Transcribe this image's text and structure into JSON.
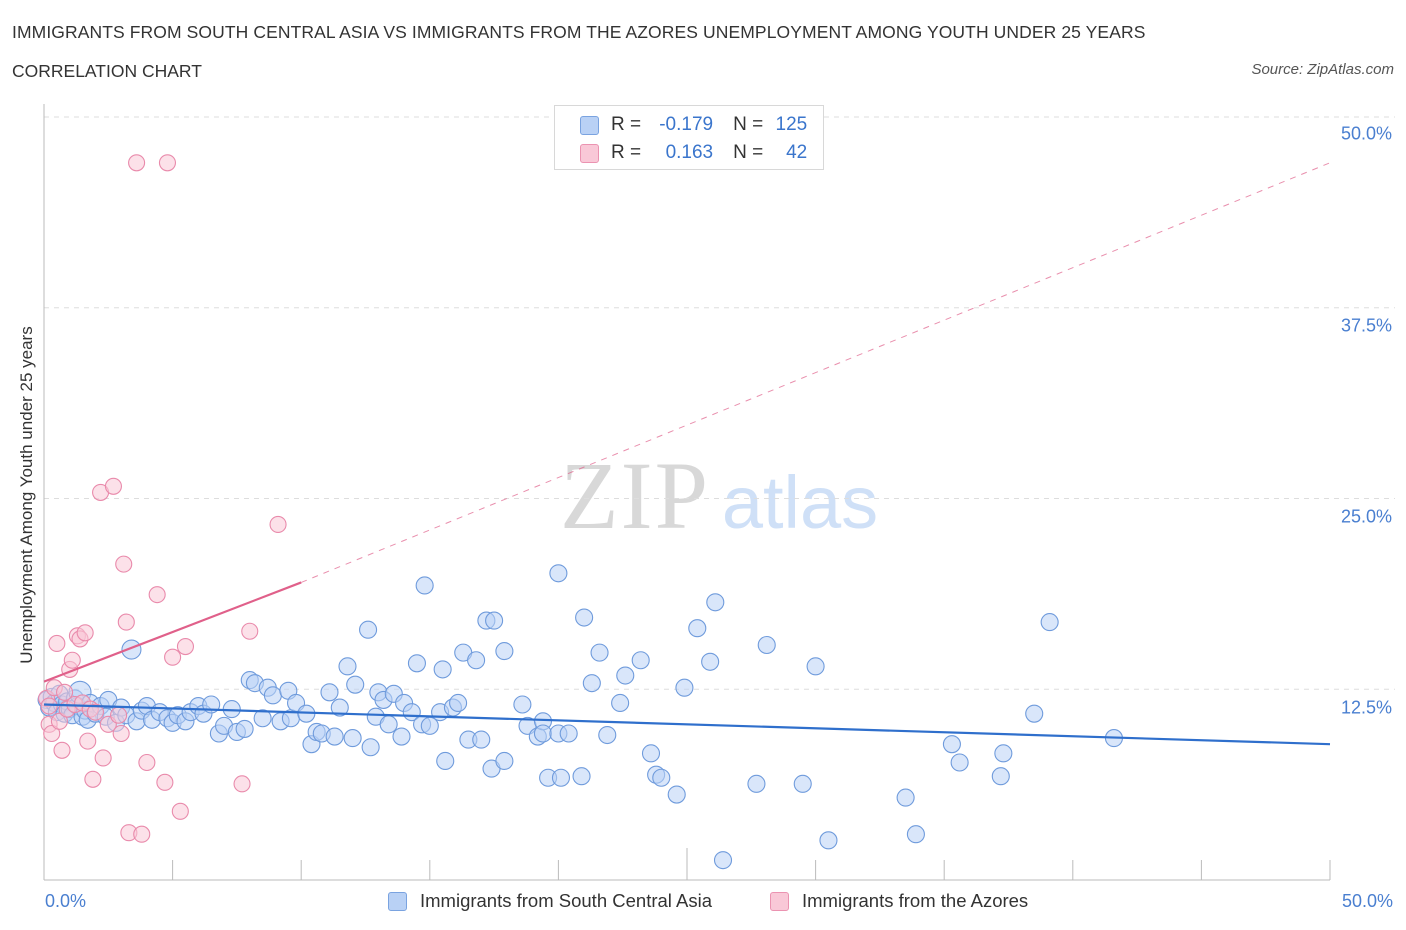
{
  "title": "IMMIGRANTS FROM SOUTH CENTRAL ASIA VS IMMIGRANTS FROM THE AZORES UNEMPLOYMENT AMONG YOUTH UNDER 25 YEARS",
  "subtitle": "CORRELATION CHART",
  "source": "Source: ZipAtlas.com",
  "watermark": {
    "zip": "ZIP",
    "atlas": "atlas"
  },
  "legend": {
    "r_label": "R =",
    "n_label": "N =",
    "series1": {
      "r": "-0.179",
      "n": "125"
    },
    "series2": {
      "r": "0.163",
      "n": "42"
    }
  },
  "bottom_legend": {
    "series1": "Immigrants from South Central Asia",
    "series2": "Immigrants from the Azores"
  },
  "colors": {
    "blue_fill": "#b9d1f5",
    "blue_stroke": "#6f9bdc",
    "blue_line": "#2f6fcc",
    "pink_fill": "#f9c8d7",
    "pink_stroke": "#e98aab",
    "pink_line": "#e0608a",
    "tick_text": "#4a7fd0",
    "grid": "#dddddd"
  },
  "chart_data": {
    "type": "scatter",
    "title": "IMMIGRANTS FROM SOUTH CENTRAL ASIA VS IMMIGRANTS FROM THE AZORES UNEMPLOYMENT AMONG YOUTH UNDER 25 YEARS",
    "xlabel": "",
    "ylabel": "Unemployment Among Youth under 25 years",
    "xlim": [
      0,
      50
    ],
    "ylim": [
      0,
      50
    ],
    "x_tick_labels": [
      "0.0%",
      "50.0%"
    ],
    "y_tick_labels": [
      "12.5%",
      "25.0%",
      "37.5%",
      "50.0%"
    ],
    "y_ticks": [
      12.5,
      25.0,
      37.5,
      50.0
    ],
    "grid": true,
    "series": [
      {
        "name": "Immigrants from South Central Asia",
        "R": -0.179,
        "N": 125,
        "trend": {
          "x": [
            0,
            50
          ],
          "y": [
            11.5,
            8.9
          ],
          "dashed_x": null
        },
        "points": [
          [
            0.1,
            11.8
          ],
          [
            0.2,
            11.3
          ],
          [
            0.3,
            12.0
          ],
          [
            0.4,
            11.6
          ],
          [
            0.5,
            11.0
          ],
          [
            0.6,
            12.2
          ],
          [
            0.7,
            11.5
          ],
          [
            0.8,
            10.9
          ],
          [
            0.9,
            11.7
          ],
          [
            1.0,
            11.2
          ],
          [
            1.1,
            10.8
          ],
          [
            1.2,
            11.9
          ],
          [
            1.3,
            11.4
          ],
          [
            1.4,
            12.3
          ],
          [
            1.5,
            10.7
          ],
          [
            1.6,
            11.1
          ],
          [
            1.7,
            10.5
          ],
          [
            1.8,
            11.6
          ],
          [
            2.0,
            10.9
          ],
          [
            2.2,
            11.4
          ],
          [
            2.4,
            10.7
          ],
          [
            2.5,
            11.8
          ],
          [
            2.8,
            10.3
          ],
          [
            3.0,
            11.3
          ],
          [
            3.2,
            10.8
          ],
          [
            3.4,
            15.1
          ],
          [
            3.6,
            10.4
          ],
          [
            3.8,
            11.1
          ],
          [
            4.0,
            11.4
          ],
          [
            4.2,
            10.5
          ],
          [
            4.5,
            11.0
          ],
          [
            4.8,
            10.6
          ],
          [
            5.0,
            10.3
          ],
          [
            5.2,
            10.8
          ],
          [
            5.5,
            10.4
          ],
          [
            5.7,
            11.0
          ],
          [
            6.0,
            11.4
          ],
          [
            6.2,
            10.9
          ],
          [
            6.5,
            11.5
          ],
          [
            6.8,
            9.6
          ],
          [
            7.0,
            10.1
          ],
          [
            7.3,
            11.2
          ],
          [
            7.5,
            9.7
          ],
          [
            7.8,
            9.9
          ],
          [
            8.0,
            13.1
          ],
          [
            8.2,
            12.9
          ],
          [
            8.5,
            10.6
          ],
          [
            8.7,
            12.6
          ],
          [
            8.9,
            12.1
          ],
          [
            9.2,
            10.4
          ],
          [
            9.5,
            12.4
          ],
          [
            9.6,
            10.6
          ],
          [
            9.8,
            11.6
          ],
          [
            10.2,
            10.9
          ],
          [
            10.4,
            8.9
          ],
          [
            10.6,
            9.7
          ],
          [
            10.8,
            9.6
          ],
          [
            11.1,
            12.3
          ],
          [
            11.3,
            9.4
          ],
          [
            11.5,
            11.3
          ],
          [
            11.8,
            14.0
          ],
          [
            12.0,
            9.3
          ],
          [
            12.1,
            12.8
          ],
          [
            12.6,
            16.4
          ],
          [
            12.7,
            8.7
          ],
          [
            12.9,
            10.7
          ],
          [
            13.0,
            12.3
          ],
          [
            13.2,
            11.8
          ],
          [
            13.4,
            10.2
          ],
          [
            13.6,
            12.2
          ],
          [
            13.9,
            9.4
          ],
          [
            14.0,
            11.6
          ],
          [
            14.3,
            11.0
          ],
          [
            14.5,
            14.2
          ],
          [
            14.7,
            10.2
          ],
          [
            14.8,
            19.3
          ],
          [
            15.0,
            10.1
          ],
          [
            15.4,
            11.0
          ],
          [
            15.5,
            13.8
          ],
          [
            15.6,
            7.8
          ],
          [
            15.9,
            11.3
          ],
          [
            16.1,
            11.6
          ],
          [
            16.3,
            14.9
          ],
          [
            16.5,
            9.2
          ],
          [
            16.8,
            14.4
          ],
          [
            17.0,
            9.2
          ],
          [
            17.2,
            17.0
          ],
          [
            17.4,
            7.3
          ],
          [
            17.5,
            17.0
          ],
          [
            17.9,
            15.0
          ],
          [
            17.9,
            7.8
          ],
          [
            18.6,
            11.5
          ],
          [
            18.8,
            10.1
          ],
          [
            19.2,
            9.4
          ],
          [
            19.4,
            10.4
          ],
          [
            19.4,
            9.6
          ],
          [
            19.6,
            6.7
          ],
          [
            20.0,
            20.1
          ],
          [
            20.0,
            9.6
          ],
          [
            20.1,
            6.7
          ],
          [
            20.4,
            9.6
          ],
          [
            20.9,
            6.8
          ],
          [
            21.0,
            17.2
          ],
          [
            21.3,
            12.9
          ],
          [
            21.6,
            14.9
          ],
          [
            21.9,
            9.5
          ],
          [
            22.4,
            11.6
          ],
          [
            22.6,
            13.4
          ],
          [
            23.2,
            14.4
          ],
          [
            23.6,
            8.3
          ],
          [
            23.8,
            6.9
          ],
          [
            24.0,
            6.7
          ],
          [
            24.6,
            5.6
          ],
          [
            24.9,
            12.6
          ],
          [
            25.4,
            16.5
          ],
          [
            25.9,
            14.3
          ],
          [
            26.1,
            18.2
          ],
          [
            26.4,
            1.3
          ],
          [
            28.1,
            15.4
          ],
          [
            27.7,
            6.3
          ],
          [
            29.5,
            6.3
          ],
          [
            30.0,
            14.0
          ],
          [
            30.5,
            2.6
          ],
          [
            33.5,
            5.4
          ],
          [
            33.9,
            3.0
          ],
          [
            35.3,
            8.9
          ],
          [
            35.6,
            7.7
          ],
          [
            37.2,
            6.8
          ],
          [
            37.3,
            8.3
          ],
          [
            38.5,
            10.9
          ],
          [
            39.1,
            16.9
          ],
          [
            41.6,
            9.3
          ]
        ]
      },
      {
        "name": "Immigrants from the Azores",
        "R": 0.163,
        "N": 42,
        "trend": {
          "x": [
            0,
            10
          ],
          "y": [
            13.0,
            19.5
          ],
          "dashed_x": [
            10,
            50
          ],
          "dashed_y": [
            19.5,
            47.0
          ]
        },
        "points": [
          [
            0.1,
            11.9
          ],
          [
            0.2,
            10.2
          ],
          [
            0.3,
            9.6
          ],
          [
            0.4,
            12.6
          ],
          [
            0.5,
            15.5
          ],
          [
            0.6,
            10.4
          ],
          [
            0.7,
            8.5
          ],
          [
            0.8,
            12.3
          ],
          [
            0.9,
            11.2
          ],
          [
            1.0,
            13.8
          ],
          [
            1.1,
            14.4
          ],
          [
            1.2,
            11.5
          ],
          [
            1.3,
            16.0
          ],
          [
            1.4,
            15.8
          ],
          [
            1.5,
            11.6
          ],
          [
            1.6,
            16.2
          ],
          [
            1.7,
            9.1
          ],
          [
            1.8,
            11.2
          ],
          [
            1.9,
            6.6
          ],
          [
            2.0,
            11.0
          ],
          [
            2.2,
            25.4
          ],
          [
            2.3,
            8.0
          ],
          [
            2.5,
            10.2
          ],
          [
            2.7,
            25.8
          ],
          [
            2.9,
            10.8
          ],
          [
            3.0,
            9.6
          ],
          [
            3.1,
            20.7
          ],
          [
            3.2,
            16.9
          ],
          [
            3.3,
            3.1
          ],
          [
            3.6,
            47.0
          ],
          [
            3.8,
            3.0
          ],
          [
            4.0,
            7.7
          ],
          [
            4.4,
            18.7
          ],
          [
            4.7,
            6.4
          ],
          [
            4.8,
            47.0
          ],
          [
            5.0,
            14.6
          ],
          [
            5.3,
            4.5
          ],
          [
            5.5,
            15.3
          ],
          [
            7.7,
            6.3
          ],
          [
            8.0,
            16.3
          ],
          [
            9.1,
            23.3
          ],
          [
            0.2,
            11.4
          ]
        ]
      }
    ]
  }
}
